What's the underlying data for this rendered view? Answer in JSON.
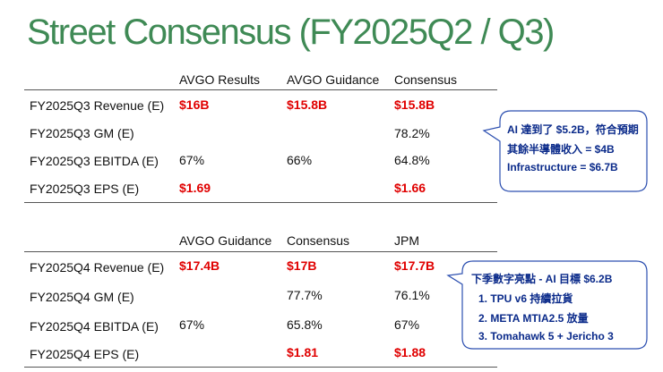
{
  "title": "Street Consensus (FY2025Q2 / Q3)",
  "table1": {
    "header": [
      "AVGO Results",
      "AVGO Guidance",
      "Consensus"
    ],
    "rows": [
      [
        "FY2025Q3 Revenue (E)",
        "$16B",
        "$15.8B",
        "$15.8B"
      ],
      [
        "FY2025Q3 GM (E)",
        null,
        null,
        "78.2%"
      ],
      [
        "FY2025Q3 EBITDA (E)",
        "67%",
        "66%",
        "64.8%"
      ],
      [
        "FY2025Q3 EPS (E)",
        "$1.69",
        null,
        "$1.66"
      ]
    ]
  },
  "callout1": {
    "lines": [
      "AI 達到了 $5.2B，符合預期",
      "其餘半導體收入 = $4B",
      "Infrastructure = $6.7B"
    ]
  },
  "table2": {
    "header": [
      "AVGO Guidance",
      "Consensus",
      "JPM"
    ],
    "rows": [
      [
        "FY2025Q4 Revenue (E)",
        "$17.4B",
        "$17B",
        "$17.7B"
      ],
      [
        "FY2025Q4 GM (E)",
        null,
        "77.7%",
        "76.1%"
      ],
      [
        "FY2025Q4 EBITDA (E)",
        "67%",
        "65.8%",
        "67%"
      ],
      [
        "FY2025Q4 EPS (E)",
        null,
        "$1.81",
        "$1.88"
      ]
    ]
  },
  "callout2": {
    "lines": [
      "下季數字亮點 - AI 目標 $6.2B",
      "1.  TPU v6 持續拉貨",
      "2.  META MTIA2.5 放量",
      "3.  Tomahawk 5 + Jericho 3"
    ]
  }
}
